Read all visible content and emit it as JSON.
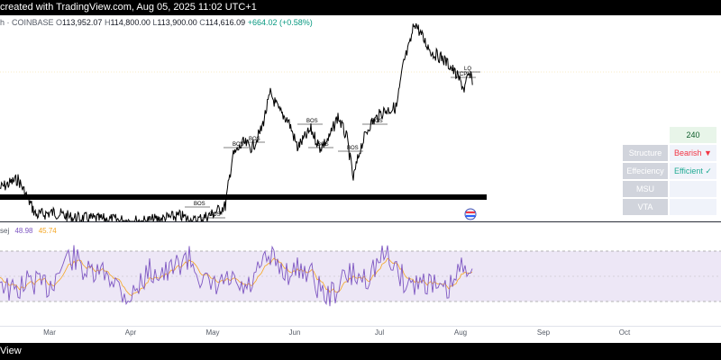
{
  "header": {
    "text": "created with TradingView.com, Aug 05, 2025 11:02 UTC+1"
  },
  "ohlc": {
    "symbol": "h · COINBASE",
    "o_label": "O",
    "o": "113,952.07",
    "h_label": "H",
    "h": "114,800.00",
    "l_label": "L",
    "l": "113,900.00",
    "c_label": "C",
    "c": "114,616.09",
    "change": "+664.02 (+0.58%)"
  },
  "price_annotations": [
    {
      "label": "BOS"
    },
    {
      "label": "BOS"
    },
    {
      "label": "BOS"
    },
    {
      "label": "BOS"
    },
    {
      "label": "BOS"
    },
    {
      "label": "BOS"
    },
    {
      "label": "BOS"
    },
    {
      "label": "BOS"
    },
    {
      "label": "LQ"
    },
    {
      "label": "CPL"
    }
  ],
  "rsi": {
    "title": "sej",
    "value": "48.98",
    "ma_value": "45.74"
  },
  "time_axis": [
    "Mar",
    "Apr",
    "May",
    "Jun",
    "Jul",
    "Aug",
    "Sep",
    "Oct"
  ],
  "panel": {
    "timeframe": "240",
    "rows": [
      {
        "label": "Structure",
        "value": "Bearish ▼"
      },
      {
        "label": "Effeciency",
        "value": "Efficient ✓"
      },
      {
        "label": "MSU",
        "value": ""
      },
      {
        "label": "VTA",
        "value": ""
      }
    ]
  },
  "footer": {
    "text": "View"
  },
  "colors": {
    "up": "#089981",
    "rsi_line": "#7e57c2",
    "rsi_ma": "#f5a623",
    "rsi_band": "#ede7f6",
    "bearish": "#f23645",
    "efficient": "#22ab94"
  }
}
